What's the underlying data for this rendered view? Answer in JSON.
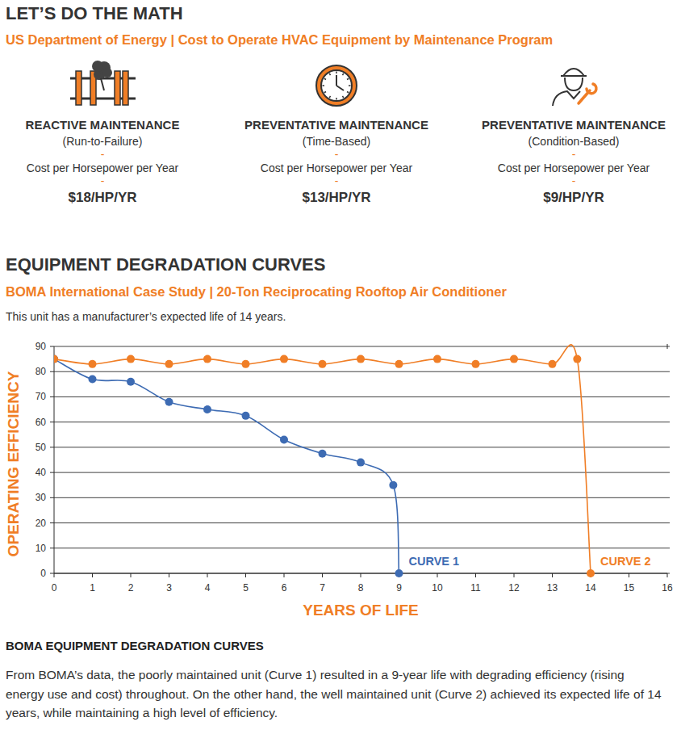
{
  "header": {
    "title": "LET’S DO THE MATH",
    "subtitle": "US Department of Energy | Cost to Operate HVAC Equipment by Maintenance Program"
  },
  "separator": "-",
  "programs": [
    {
      "title": "REACTIVE MAINTENANCE",
      "subtitle": "(Run-to-Failure)",
      "metric": "Cost per Horsepower per Year",
      "cost": "$18/HP/YR"
    },
    {
      "title": "PREVENTATIVE MAINTENANCE",
      "subtitle": "(Time-Based)",
      "metric": "Cost per Horsepower per Year",
      "cost": "$13/HP/YR"
    },
    {
      "title": "PREVENTATIVE MAINTENANCE",
      "subtitle": "(Condition-Based)",
      "metric": "Cost per Horsepower per Year",
      "cost": "$9/HP/YR"
    }
  ],
  "section": {
    "title": "EQUIPMENT DEGRADATION CURVES",
    "subtitle": "BOMA International Case Study | 20-Ton Reciprocating Rooftop Air Conditioner",
    "note": "This unit has a manufacturer’s expected life of 14 years."
  },
  "chart_data": {
    "type": "line",
    "xlabel": "YEARS OF LIFE",
    "ylabel": "OPERATING EFFICIENCY",
    "xlim": [
      0,
      16
    ],
    "ylim": [
      0,
      90
    ],
    "xticks": [
      0,
      1,
      2,
      3,
      4,
      5,
      6,
      7,
      8,
      9,
      10,
      11,
      12,
      13,
      14,
      15,
      16
    ],
    "yticks": [
      0,
      10,
      20,
      30,
      40,
      50,
      60,
      70,
      80,
      90
    ],
    "grid": true,
    "marker": "circle",
    "series": [
      {
        "name": "CURVE 1",
        "color": "#3d6bb3",
        "x": [
          0,
          1,
          2,
          3,
          4,
          5,
          6,
          7,
          8,
          8.85,
          9
        ],
        "values": [
          85,
          77,
          76,
          68,
          65,
          62.5,
          53,
          47.5,
          44,
          35,
          0
        ]
      },
      {
        "name": "CURVE 2",
        "color": "#f07e26",
        "x": [
          0,
          1,
          2,
          3,
          4,
          5,
          6,
          7,
          8,
          9,
          10,
          11,
          12,
          13,
          13.65,
          14
        ],
        "values": [
          85,
          83,
          85,
          83,
          85,
          83,
          85,
          83,
          85,
          83,
          85,
          83,
          85,
          83,
          85,
          0
        ]
      }
    ]
  },
  "footer": {
    "title": "BOMA EQUIPMENT DEGRADATION CURVES",
    "text": "From BOMA’s data, the poorly maintained unit (Curve 1) resulted in a 9-year life with degrading efficiency (rising energy use and cost) throughout. On the other hand, the well maintained unit (Curve 2) achieved its expected life of 14 years, while maintaining a high level of efficiency."
  }
}
